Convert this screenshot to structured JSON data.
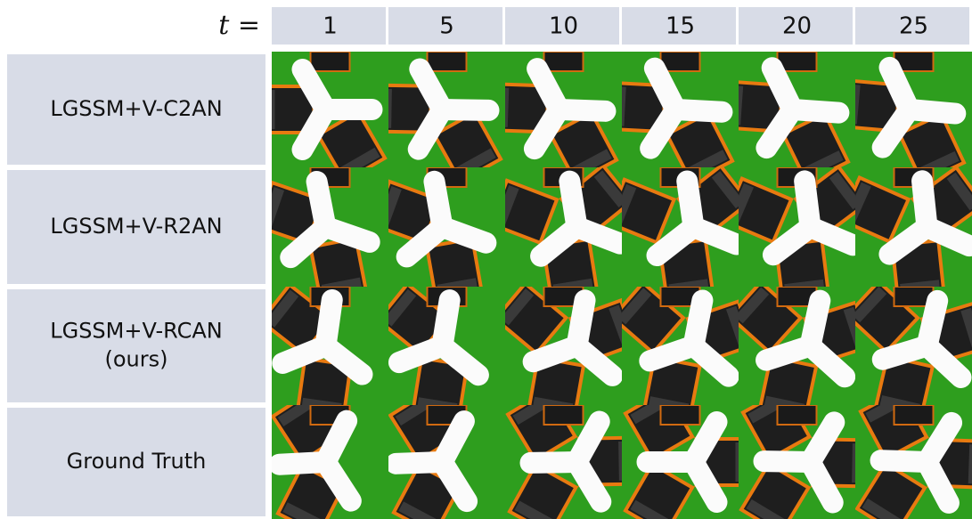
{
  "header": {
    "t_label": "t =",
    "columns": [
      "1",
      "5",
      "10",
      "15",
      "20",
      "25"
    ]
  },
  "rows": [
    {
      "label": [
        "LGSSM+V-C2AN"
      ]
    },
    {
      "label": [
        "LGSSM+V-R2AN"
      ]
    },
    {
      "label": [
        "LGSSM+V-RCAN",
        "(ours)"
      ]
    },
    {
      "label": [
        "Ground Truth"
      ]
    }
  ]
}
